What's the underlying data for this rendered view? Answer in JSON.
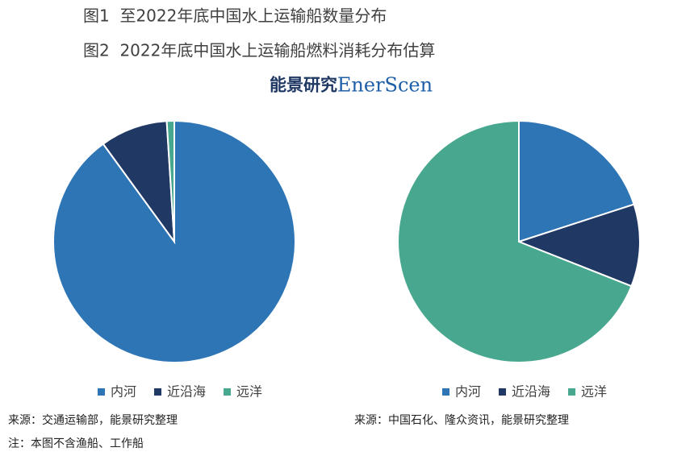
{
  "logo": {
    "cn": "能景研究",
    "en": "EnerScen"
  },
  "chart_data": [
    {
      "type": "pie",
      "title": "图1  至2022年底中国水上运输船数量分布",
      "categories": [
        "内河",
        "近沿海",
        "远洋"
      ],
      "values": [
        90,
        9,
        1
      ],
      "colors": [
        "#2e75b6",
        "#203864",
        "#47a78f"
      ],
      "source": "来源：交通运输部，能景研究整理",
      "note": "注：本图不含渔船、工作船"
    },
    {
      "type": "pie",
      "title": "图2  2022年底中国水上运输船燃料消耗分布估算",
      "categories": [
        "内河",
        "近沿海",
        "远洋"
      ],
      "values": [
        20,
        11,
        69
      ],
      "colors": [
        "#2e75b6",
        "#203864",
        "#47a78f"
      ],
      "source": "来源：中国石化、隆众资讯，能景研究整理"
    }
  ]
}
